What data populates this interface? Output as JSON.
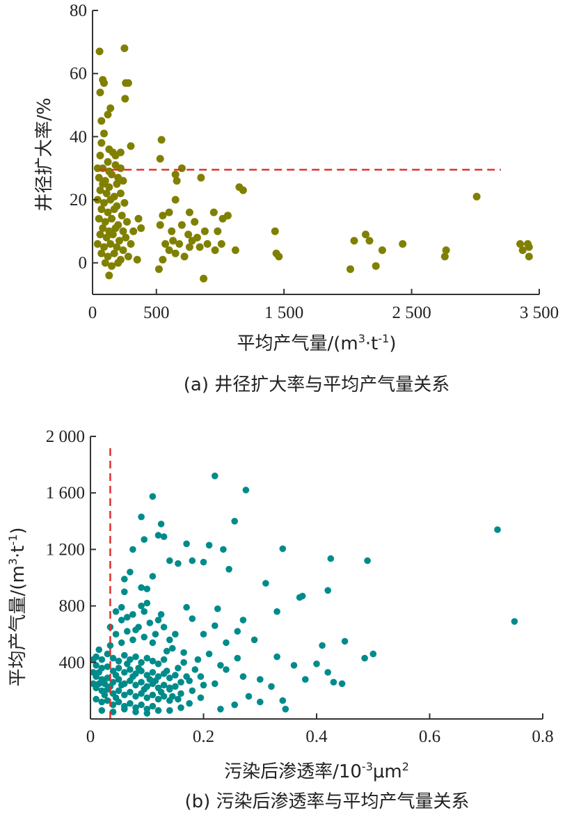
{
  "chart_data": [
    {
      "type": "scatter",
      "caption": "(a) 井径扩大率与平均产气量关系",
      "xlabel_main": "平均产气量/(m",
      "xlabel_sup1": "3",
      "xlabel_mid": "·t",
      "xlabel_sup2": "-1",
      "xlabel_end": ")",
      "ylabel": "井径扩大率/%",
      "xlim": [
        0,
        3500
      ],
      "ylim": [
        -10,
        80
      ],
      "xticks": [
        0,
        500,
        1500,
        2500,
        3500
      ],
      "xtick_labels": [
        "0",
        "500",
        "1 500",
        "2 500",
        "3 500"
      ],
      "yticks": [
        0,
        20,
        40,
        60,
        80
      ],
      "ytick_labels": [
        "0",
        "20",
        "40",
        "60",
        "80"
      ],
      "marker_color": "#808000",
      "reference_line": {
        "orientation": "horizontal",
        "value": 29.5,
        "x_range": [
          50,
          3200
        ],
        "color": "#e0302a",
        "style": "dashed"
      },
      "points": [
        [
          55,
          67
        ],
        [
          250,
          68
        ],
        [
          80,
          58
        ],
        [
          90,
          57
        ],
        [
          260,
          57
        ],
        [
          280,
          57
        ],
        [
          60,
          54
        ],
        [
          255,
          52
        ],
        [
          140,
          49
        ],
        [
          120,
          47
        ],
        [
          70,
          45
        ],
        [
          90,
          41
        ],
        [
          70,
          38
        ],
        [
          300,
          37
        ],
        [
          130,
          36
        ],
        [
          160,
          35
        ],
        [
          220,
          35
        ],
        [
          60,
          34
        ],
        [
          180,
          34
        ],
        [
          120,
          32
        ],
        [
          540,
          39
        ],
        [
          530,
          33
        ],
        [
          40,
          30
        ],
        [
          80,
          30
        ],
        [
          130,
          29
        ],
        [
          180,
          31
        ],
        [
          220,
          30
        ],
        [
          50,
          27
        ],
        [
          100,
          26
        ],
        [
          150,
          28
        ],
        [
          200,
          27
        ],
        [
          240,
          26
        ],
        [
          80,
          25
        ],
        [
          130,
          24
        ],
        [
          190,
          25
        ],
        [
          60,
          23
        ],
        [
          110,
          22
        ],
        [
          170,
          21
        ],
        [
          220,
          22
        ],
        [
          40,
          20
        ],
        [
          90,
          19
        ],
        [
          140,
          20
        ],
        [
          190,
          18
        ],
        [
          250,
          19
        ],
        [
          70,
          17
        ],
        [
          120,
          16
        ],
        [
          170,
          17
        ],
        [
          230,
          15
        ],
        [
          50,
          14
        ],
        [
          100,
          13
        ],
        [
          150,
          14
        ],
        [
          200,
          12
        ],
        [
          270,
          13
        ],
        [
          80,
          11
        ],
        [
          130,
          10
        ],
        [
          180,
          11
        ],
        [
          240,
          10
        ],
        [
          60,
          9
        ],
        [
          110,
          8
        ],
        [
          160,
          9
        ],
        [
          210,
          7
        ],
        [
          260,
          8
        ],
        [
          320,
          10
        ],
        [
          40,
          6
        ],
        [
          90,
          5
        ],
        [
          140,
          6
        ],
        [
          190,
          5
        ],
        [
          240,
          4
        ],
        [
          300,
          6
        ],
        [
          70,
          3
        ],
        [
          120,
          2
        ],
        [
          170,
          3
        ],
        [
          220,
          1
        ],
        [
          280,
          2
        ],
        [
          100,
          0
        ],
        [
          150,
          -1
        ],
        [
          200,
          0
        ],
        [
          350,
          1
        ],
        [
          130,
          -4
        ],
        [
          360,
          14
        ],
        [
          380,
          11
        ],
        [
          700,
          30
        ],
        [
          650,
          28
        ],
        [
          660,
          26
        ],
        [
          850,
          27
        ],
        [
          650,
          20
        ],
        [
          550,
          15
        ],
        [
          600,
          16
        ],
        [
          530,
          12
        ],
        [
          620,
          10
        ],
        [
          700,
          12
        ],
        [
          760,
          16
        ],
        [
          800,
          13
        ],
        [
          750,
          9
        ],
        [
          820,
          8
        ],
        [
          880,
          10
        ],
        [
          680,
          6
        ],
        [
          760,
          5
        ],
        [
          840,
          5
        ],
        [
          600,
          4
        ],
        [
          650,
          3
        ],
        [
          720,
          2
        ],
        [
          550,
          1
        ],
        [
          520,
          -2
        ],
        [
          870,
          -5
        ],
        [
          950,
          16
        ],
        [
          1020,
          14
        ],
        [
          980,
          10
        ],
        [
          900,
          6
        ],
        [
          1060,
          15
        ],
        [
          1150,
          24
        ],
        [
          1180,
          23
        ],
        [
          1120,
          4
        ],
        [
          1010,
          6
        ],
        [
          570,
          6
        ],
        [
          630,
          7
        ],
        [
          960,
          4
        ],
        [
          780,
          7
        ],
        [
          1430,
          10
        ],
        [
          1440,
          3
        ],
        [
          1460,
          2
        ],
        [
          2020,
          -2
        ],
        [
          2050,
          7
        ],
        [
          2140,
          9
        ],
        [
          2170,
          7
        ],
        [
          2220,
          -1
        ],
        [
          2270,
          4
        ],
        [
          2430,
          6
        ],
        [
          2760,
          2
        ],
        [
          2770,
          4
        ],
        [
          3010,
          21
        ],
        [
          3350,
          6
        ],
        [
          3370,
          4
        ],
        [
          3420,
          5
        ],
        [
          3420,
          2
        ],
        [
          3410,
          6
        ]
      ]
    },
    {
      "type": "scatter",
      "caption": "(b) 污染后渗透率与平均产气量关系",
      "xlabel_main": "污染后渗透率/10",
      "xlabel_sup1": "-3",
      "xlabel_end": "μm",
      "xlabel_sup2": "2",
      "ylabel_main": "平均产气量/(m",
      "ylabel_sup1": "3",
      "ylabel_mid": "·t",
      "ylabel_sup2": "-1",
      "ylabel_end": ")",
      "xlim": [
        0,
        0.8
      ],
      "ylim": [
        0,
        2000
      ],
      "xticks": [
        0,
        0.2,
        0.4,
        0.6,
        0.8
      ],
      "xtick_labels": [
        "0",
        "0.2",
        "0.4",
        "0.6",
        "0.8"
      ],
      "yticks": [
        400,
        800,
        1200,
        1600,
        2000
      ],
      "ytick_labels": [
        "400",
        "800",
        "1 200",
        "1 600",
        "2 000"
      ],
      "marker_color": "#008b8b",
      "reference_line": {
        "orientation": "vertical",
        "value": 0.035,
        "y_range": [
          0,
          1950
        ],
        "color": "#e0302a",
        "style": "dashed"
      },
      "points": [
        [
          0.22,
          1720
        ],
        [
          0.275,
          1620
        ],
        [
          0.11,
          1575
        ],
        [
          0.09,
          1430
        ],
        [
          0.255,
          1400
        ],
        [
          0.125,
          1380
        ],
        [
          0.72,
          1340
        ],
        [
          0.12,
          1300
        ],
        [
          0.13,
          1290
        ],
        [
          0.095,
          1270
        ],
        [
          0.17,
          1240
        ],
        [
          0.21,
          1230
        ],
        [
          0.075,
          1200
        ],
        [
          0.235,
          1200
        ],
        [
          0.34,
          1205
        ],
        [
          0.14,
          1120
        ],
        [
          0.18,
          1120
        ],
        [
          0.2,
          1110
        ],
        [
          0.155,
          1100
        ],
        [
          0.425,
          1135
        ],
        [
          0.49,
          1120
        ],
        [
          0.245,
          1060
        ],
        [
          0.07,
          1040
        ],
        [
          0.11,
          1010
        ],
        [
          0.06,
          990
        ],
        [
          0.09,
          930
        ],
        [
          0.1,
          920
        ],
        [
          0.31,
          960
        ],
        [
          0.42,
          910
        ],
        [
          0.06,
          900
        ],
        [
          0.375,
          870
        ],
        [
          0.37,
          860
        ],
        [
          0.1,
          820
        ],
        [
          0.09,
          800
        ],
        [
          0.055,
          790
        ],
        [
          0.17,
          790
        ],
        [
          0.225,
          780
        ],
        [
          0.33,
          760
        ],
        [
          0.75,
          690
        ],
        [
          0.27,
          700
        ],
        [
          0.045,
          760
        ],
        [
          0.065,
          720
        ],
        [
          0.12,
          700
        ],
        [
          0.18,
          710
        ],
        [
          0.13,
          650
        ],
        [
          0.22,
          660
        ],
        [
          0.26,
          620
        ],
        [
          0.08,
          630
        ],
        [
          0.15,
          600
        ],
        [
          0.2,
          600
        ],
        [
          0.14,
          560
        ],
        [
          0.29,
          560
        ],
        [
          0.24,
          540
        ],
        [
          0.11,
          540
        ],
        [
          0.45,
          550
        ],
        [
          0.41,
          520
        ],
        [
          0.5,
          460
        ],
        [
          0.485,
          430
        ],
        [
          0.33,
          440
        ],
        [
          0.36,
          380
        ],
        [
          0.4,
          390
        ],
        [
          0.42,
          330
        ],
        [
          0.43,
          260
        ],
        [
          0.445,
          250
        ],
        [
          0.38,
          280
        ],
        [
          0.27,
          300
        ],
        [
          0.3,
          280
        ],
        [
          0.24,
          350
        ],
        [
          0.26,
          430
        ],
        [
          0.21,
          460
        ],
        [
          0.19,
          420
        ],
        [
          0.23,
          380
        ],
        [
          0.17,
          300
        ],
        [
          0.2,
          240
        ],
        [
          0.18,
          200
        ],
        [
          0.16,
          180
        ],
        [
          0.14,
          220
        ],
        [
          0.28,
          160
        ],
        [
          0.34,
          130
        ],
        [
          0.3,
          120
        ],
        [
          0.32,
          230
        ],
        [
          0.22,
          250
        ],
        [
          0.255,
          100
        ],
        [
          0.345,
          70
        ],
        [
          0.23,
          70
        ],
        [
          0.01,
          440
        ],
        [
          0.02,
          420
        ],
        [
          0.03,
          460
        ],
        [
          0.04,
          430
        ],
        [
          0.05,
          410
        ],
        [
          0.06,
          450
        ],
        [
          0.07,
          420
        ],
        [
          0.08,
          440
        ],
        [
          0.09,
          400
        ],
        [
          0.1,
          430
        ],
        [
          0.11,
          410
        ],
        [
          0.12,
          390
        ],
        [
          0.13,
          420
        ],
        [
          0.01,
          380
        ],
        [
          0.02,
          360
        ],
        [
          0.03,
          370
        ],
        [
          0.04,
          340
        ],
        [
          0.05,
          360
        ],
        [
          0.06,
          330
        ],
        [
          0.07,
          350
        ],
        [
          0.08,
          320
        ],
        [
          0.09,
          340
        ],
        [
          0.1,
          310
        ],
        [
          0.11,
          330
        ],
        [
          0.12,
          300
        ],
        [
          0.13,
          320
        ],
        [
          0.14,
          290
        ],
        [
          0.15,
          310
        ],
        [
          0.01,
          300
        ],
        [
          0.02,
          280
        ],
        [
          0.03,
          290
        ],
        [
          0.04,
          260
        ],
        [
          0.05,
          280
        ],
        [
          0.06,
          250
        ],
        [
          0.07,
          270
        ],
        [
          0.08,
          240
        ],
        [
          0.09,
          260
        ],
        [
          0.1,
          230
        ],
        [
          0.11,
          250
        ],
        [
          0.12,
          220
        ],
        [
          0.13,
          240
        ],
        [
          0.14,
          210
        ],
        [
          0.15,
          230
        ],
        [
          0.16,
          260
        ],
        [
          0.01,
          220
        ],
        [
          0.02,
          200
        ],
        [
          0.03,
          210
        ],
        [
          0.04,
          180
        ],
        [
          0.05,
          200
        ],
        [
          0.06,
          170
        ],
        [
          0.07,
          190
        ],
        [
          0.08,
          160
        ],
        [
          0.09,
          180
        ],
        [
          0.1,
          150
        ],
        [
          0.11,
          170
        ],
        [
          0.12,
          140
        ],
        [
          0.13,
          160
        ],
        [
          0.14,
          130
        ],
        [
          0.01,
          140
        ],
        [
          0.02,
          120
        ],
        [
          0.03,
          130
        ],
        [
          0.04,
          100
        ],
        [
          0.05,
          120
        ],
        [
          0.06,
          90
        ],
        [
          0.07,
          110
        ],
        [
          0.08,
          80
        ],
        [
          0.09,
          100
        ],
        [
          0.1,
          70
        ],
        [
          0.11,
          90
        ],
        [
          0.12,
          60
        ],
        [
          0.02,
          60
        ],
        [
          0.04,
          50
        ],
        [
          0.06,
          70
        ],
        [
          0.08,
          50
        ],
        [
          0.1,
          40
        ],
        [
          0.14,
          60
        ],
        [
          0.16,
          80
        ],
        [
          0.015,
          490
        ],
        [
          0.035,
          520
        ],
        [
          0.055,
          540
        ],
        [
          0.075,
          560
        ],
        [
          0.095,
          580
        ],
        [
          0.115,
          600
        ],
        [
          0.045,
          600
        ],
        [
          0.065,
          620
        ],
        [
          0.085,
          650
        ],
        [
          0.105,
          680
        ],
        [
          0.035,
          650
        ],
        [
          0.055,
          700
        ],
        [
          0.075,
          740
        ],
        [
          0.095,
          760
        ],
        [
          0.125,
          740
        ],
        [
          0.145,
          500
        ],
        [
          0.165,
          470
        ],
        [
          0.185,
          350
        ],
        [
          0.195,
          300
        ],
        [
          0.175,
          270
        ],
        [
          0.155,
          360
        ],
        [
          0.165,
          400
        ],
        [
          0.135,
          480
        ],
        [
          0.025,
          250
        ],
        [
          0.045,
          310
        ],
        [
          0.065,
          390
        ],
        [
          0.085,
          360
        ],
        [
          0.105,
          280
        ],
        [
          0.125,
          190
        ],
        [
          0.145,
          160
        ],
        [
          0.045,
          150
        ],
        [
          0.025,
          170
        ],
        [
          0.005,
          330
        ],
        [
          0.005,
          250
        ],
        [
          0.005,
          420
        ],
        [
          0.015,
          330
        ],
        [
          0.015,
          250
        ],
        [
          0.035,
          230
        ],
        [
          0.055,
          240
        ],
        [
          0.075,
          300
        ],
        [
          0.095,
          210
        ],
        [
          0.115,
          270
        ],
        [
          0.135,
          340
        ],
        [
          0.155,
          140
        ],
        [
          0.175,
          110
        ],
        [
          0.195,
          150
        ]
      ]
    }
  ]
}
